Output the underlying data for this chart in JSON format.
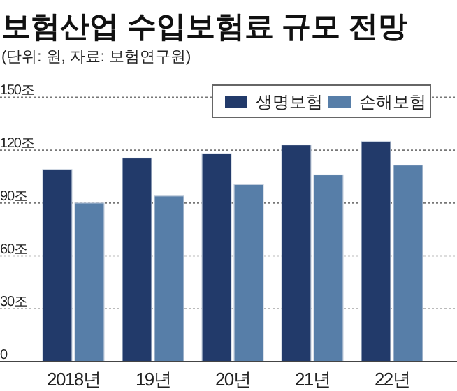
{
  "chart_data": {
    "type": "bar",
    "title": "보험산업 수입보험료 규모 전망",
    "subtitle": "(단위: 원, 자료: 보험연구원)",
    "categories": [
      "2018년",
      "19년",
      "20년",
      "21년",
      "22년"
    ],
    "series": [
      {
        "name": "생명보험",
        "color": "#223a6a",
        "values": [
          109,
          115.5,
          118,
          123,
          125
        ]
      },
      {
        "name": "손해보험",
        "color": "#577ea8",
        "values": [
          90,
          94,
          100.5,
          106,
          111.5
        ]
      }
    ],
    "ylim": [
      0,
      150
    ],
    "yticks": [
      0,
      {
        "value": 30,
        "label": "30조"
      },
      {
        "value": 60,
        "label": "60조"
      },
      {
        "value": 90,
        "label": "90조"
      },
      {
        "value": 120,
        "label": "120조"
      },
      {
        "value": 150,
        "label": "150조"
      }
    ],
    "grid": "y",
    "legend": "top right"
  }
}
